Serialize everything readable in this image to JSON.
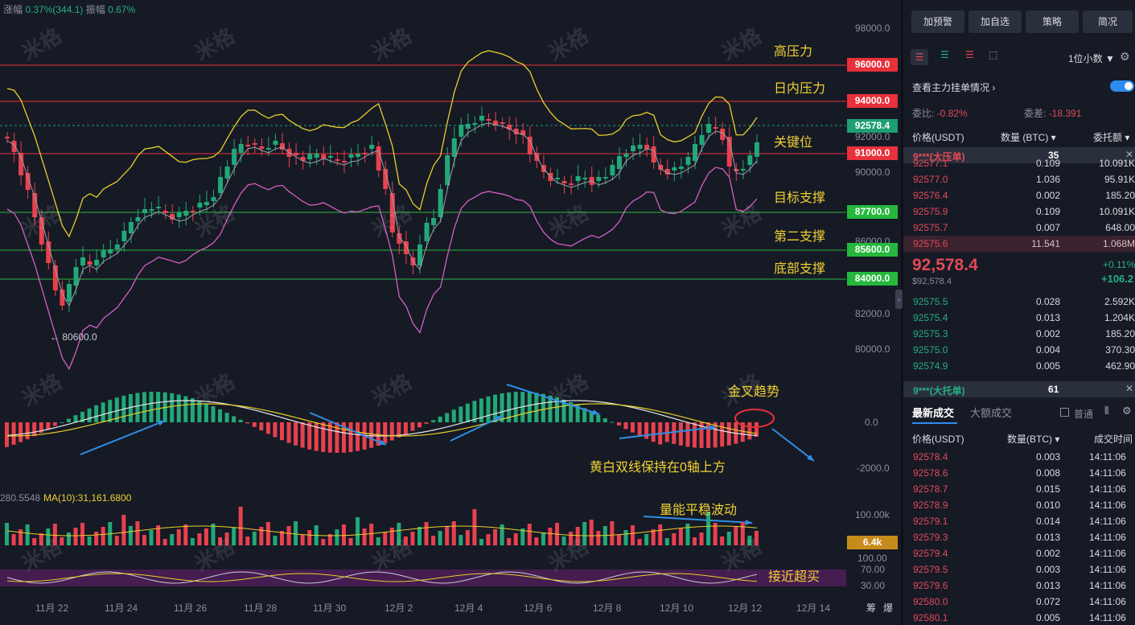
{
  "stats": {
    "change_label": "涨幅",
    "change_value": "0.37%(344.1)",
    "amplitude_label": "振幅",
    "amplitude_value": "0.67%"
  },
  "price_axis": [
    "98000.0",
    "92000.0",
    "90000.0",
    "86000.0",
    "82000.0",
    "80000.0"
  ],
  "levels": [
    {
      "price": "96000.0",
      "label": "高压力",
      "kind": "resistance",
      "color": "#e8313b"
    },
    {
      "price": "94000.0",
      "label": "日内压力",
      "kind": "resistance",
      "color": "#e8313b"
    },
    {
      "price": "91000.0",
      "label": "关键位",
      "kind": "resistance",
      "color": "#e8313b"
    },
    {
      "price": "87700.0",
      "label": "目标支撑",
      "kind": "support",
      "color": "#25b83c"
    },
    {
      "price": "85600.0",
      "label": "第二支撑",
      "kind": "support",
      "color": "#25b83c"
    },
    {
      "price": "84000.0",
      "label": "底部支撑",
      "kind": "support",
      "color": "#25b83c"
    }
  ],
  "current_price": {
    "value": "92578.4",
    "color": "#1e9e74"
  },
  "low_marker": "← 80600.0",
  "macd": {
    "zero": "0.0",
    "lower": "-2000.0",
    "golden_cross": "金叉趋势",
    "note": "黄白双线保持在0轴上方"
  },
  "volume": {
    "header_value": "280.5548",
    "ma_label": "MA(10):31,161.6800",
    "axis_top": "100.00k",
    "current": "6.4k",
    "note": "量能平稳波动"
  },
  "rsi": {
    "axis": [
      "100.00",
      "70.00",
      "30.00"
    ],
    "note": "接近超买"
  },
  "x_axis": [
    "11月 22",
    "11月 24",
    "11月 26",
    "11月 28",
    "11月 30",
    "12月 2",
    "12月 4",
    "12月 6",
    "12月 8",
    "12月 10",
    "12月 12",
    "12月 14"
  ],
  "corner_labels": [
    "筹",
    "爆"
  ],
  "watermark": "米格",
  "panel": {
    "buttons": [
      "加预警",
      "加自选",
      "策略",
      "简况"
    ],
    "decimals": "1位小数 ▼",
    "order_title": "查看主力挂单情况 ›",
    "ratio_label": "委比:",
    "ratio_value": "-0.82%",
    "diff_label": "委差:",
    "diff_value": "-18.391",
    "col_price": "价格(USDT)",
    "col_qty": "数量 (BTC) ▾",
    "col_total": "委托额 ▾",
    "big_ask_label": "9***(大压单)",
    "big_ask_value": "35",
    "asks": [
      {
        "price": "92577.1",
        "qty": "0.109",
        "total": "10.091K"
      },
      {
        "price": "92577.0",
        "qty": "1.036",
        "total": "95.91K"
      },
      {
        "price": "92576.4",
        "qty": "0.002",
        "total": "185.20"
      },
      {
        "price": "92575.9",
        "qty": "0.109",
        "total": "10.091K"
      },
      {
        "price": "92575.7",
        "qty": "0.007",
        "total": "648.00"
      },
      {
        "price": "92575.6",
        "qty": "11.541",
        "total": "1.068M"
      }
    ],
    "last_price": "92,578.4",
    "last_usd": "$92,578.4",
    "change_pct": "+0.11%",
    "change_abs": "+106.2",
    "bids": [
      {
        "price": "92575.5",
        "qty": "0.028",
        "total": "2.592K"
      },
      {
        "price": "92575.4",
        "qty": "0.013",
        "total": "1.204K"
      },
      {
        "price": "92575.3",
        "qty": "0.002",
        "total": "185.20"
      },
      {
        "price": "92575.0",
        "qty": "0.004",
        "total": "370.30"
      },
      {
        "price": "92574.9",
        "qty": "0.005",
        "total": "462.90"
      }
    ],
    "big_bid_label": "9***(大托单)",
    "big_bid_value": "61",
    "tab_latest": "最新成交",
    "tab_large": "大额成交",
    "ordinary_label": "普通",
    "trade_col_price": "价格(USDT)",
    "trade_col_qty": "数量(BTC) ▾",
    "trade_col_time": "成交时间",
    "trades": [
      {
        "price": "92578.4",
        "qty": "0.003",
        "time": "14:11:06"
      },
      {
        "price": "92578.6",
        "qty": "0.008",
        "time": "14:11:06"
      },
      {
        "price": "92578.7",
        "qty": "0.015",
        "time": "14:11:06"
      },
      {
        "price": "92578.9",
        "qty": "0.010",
        "time": "14:11:06"
      },
      {
        "price": "92579.1",
        "qty": "0.014",
        "time": "14:11:06"
      },
      {
        "price": "92579.3",
        "qty": "0.013",
        "time": "14:11:06"
      },
      {
        "price": "92579.4",
        "qty": "0.002",
        "time": "14:11:06"
      },
      {
        "price": "92579.5",
        "qty": "0.003",
        "time": "14:11:06"
      },
      {
        "price": "92579.6",
        "qty": "0.013",
        "time": "14:11:06"
      },
      {
        "price": "92580.0",
        "qty": "0.072",
        "time": "14:11:06"
      },
      {
        "price": "92580.1",
        "qty": "0.005",
        "time": "14:11:06"
      }
    ]
  }
}
